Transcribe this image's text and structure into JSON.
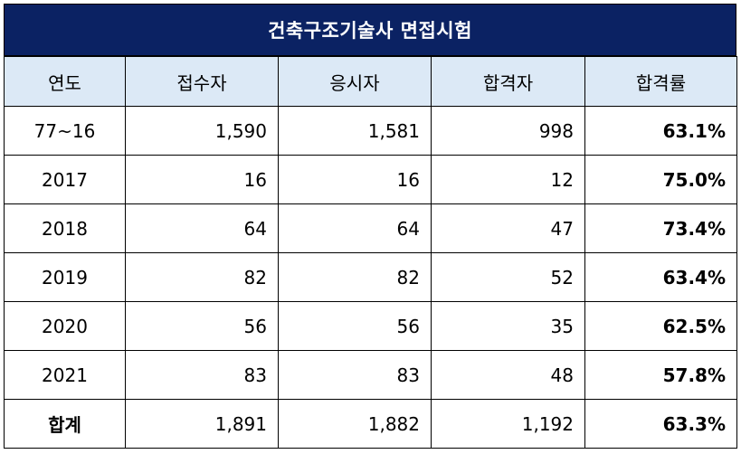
{
  "title": "건축구조기술사 면접시험",
  "headers": [
    "연도",
    "접수자",
    "응시자",
    "합격자",
    "합격률"
  ],
  "rows": [
    {
      "year": "77~16",
      "applied": "1,590",
      "taken": "1,581",
      "passed": "998",
      "rate": "63.1%"
    },
    {
      "year": "2017",
      "applied": "16",
      "taken": "16",
      "passed": "12",
      "rate": "75.0%"
    },
    {
      "year": "2018",
      "applied": "64",
      "taken": "64",
      "passed": "47",
      "rate": "73.4%"
    },
    {
      "year": "2019",
      "applied": "82",
      "taken": "82",
      "passed": "52",
      "rate": "63.4%"
    },
    {
      "year": "2020",
      "applied": "56",
      "taken": "56",
      "passed": "35",
      "rate": "62.5%"
    },
    {
      "year": "2021",
      "applied": "83",
      "taken": "83",
      "passed": "48",
      "rate": "57.8%"
    }
  ],
  "total": {
    "label": "합계",
    "applied": "1,891",
    "taken": "1,882",
    "passed": "1,192",
    "rate": "63.3%"
  },
  "colors": {
    "title_bg": "#0b2263",
    "header_bg": "#dce9f6"
  }
}
